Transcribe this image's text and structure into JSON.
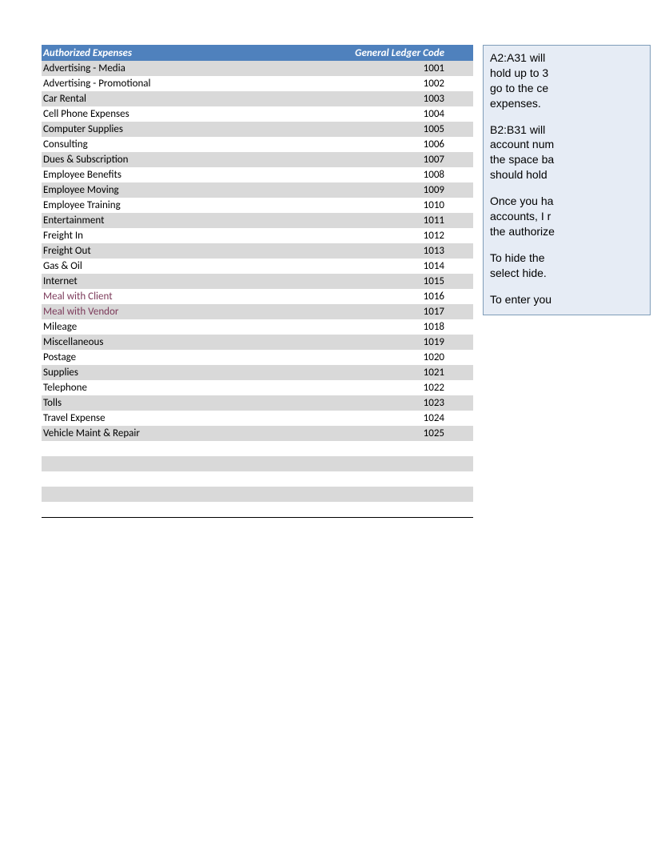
{
  "table": {
    "header_bg": "#4f81bd",
    "header_text_color": "#ffffff",
    "row_odd_bg": "#d9d9d9",
    "row_even_bg": "#ffffff",
    "text_color": "#000000",
    "alt_text_color": "#7c3a5a",
    "columns": {
      "left": "Authorized Expenses",
      "right": "General Ledger Code"
    },
    "rows": [
      {
        "name": "Advertising - Media",
        "code": "1001",
        "alt": false
      },
      {
        "name": "Advertising - Promotional",
        "code": "1002",
        "alt": false
      },
      {
        "name": "Car Rental",
        "code": "1003",
        "alt": false
      },
      {
        "name": "Cell Phone Expenses",
        "code": "1004",
        "alt": false
      },
      {
        "name": "Computer Supplies",
        "code": "1005",
        "alt": false
      },
      {
        "name": "Consulting",
        "code": "1006",
        "alt": false
      },
      {
        "name": "Dues & Subscription",
        "code": "1007",
        "alt": false
      },
      {
        "name": "Employee Benefits",
        "code": "1008",
        "alt": false
      },
      {
        "name": "Employee Moving",
        "code": "1009",
        "alt": false
      },
      {
        "name": "Employee Training",
        "code": "1010",
        "alt": false
      },
      {
        "name": "Entertainment",
        "code": "1011",
        "alt": false
      },
      {
        "name": "Freight In",
        "code": "1012",
        "alt": false
      },
      {
        "name": "Freight Out",
        "code": "1013",
        "alt": false
      },
      {
        "name": "Gas & Oil",
        "code": "1014",
        "alt": false
      },
      {
        "name": "Internet",
        "code": "1015",
        "alt": false
      },
      {
        "name": "Meal with Client",
        "code": "1016",
        "alt": true
      },
      {
        "name": "Meal with Vendor",
        "code": "1017",
        "alt": true
      },
      {
        "name": "Mileage",
        "code": "1018",
        "alt": false
      },
      {
        "name": "Miscellaneous",
        "code": "1019",
        "alt": false
      },
      {
        "name": "Postage",
        "code": "1020",
        "alt": false
      },
      {
        "name": "Supplies",
        "code": "1021",
        "alt": false
      },
      {
        "name": "Telephone",
        "code": "1022",
        "alt": false
      },
      {
        "name": "Tolls",
        "code": "1023",
        "alt": false
      },
      {
        "name": "Travel Expense",
        "code": "1024",
        "alt": false
      },
      {
        "name": "Vehicle Maint & Repair",
        "code": "1025",
        "alt": false
      }
    ],
    "trailing_blank_rows": 5
  },
  "note": {
    "bg": "#e6ecf5",
    "border": "#7f9db9",
    "paragraphs": [
      "A2:A31 will hold up to 3 go to the ce expenses.",
      "B2:B31 will account num the space ba should hold",
      "Once you ha accounts, I r the authorize",
      "To hide the select hide.",
      "To enter you"
    ],
    "lines": {
      "p1l1": "A2:A31 will",
      "p1l2": "hold up to 3",
      "p1l3": "go to the ce",
      "p1l4": "expenses.",
      "p2l1": "B2:B31 will",
      "p2l2": "account num",
      "p2l3": "the space ba",
      "p2l4": "should hold",
      "p3l1": "Once you ha",
      "p3l2": "accounts, I r",
      "p3l3": "the authorize",
      "p4l1": "To hide the",
      "p4l2": "select hide.",
      "p5l1": "To enter you"
    }
  }
}
